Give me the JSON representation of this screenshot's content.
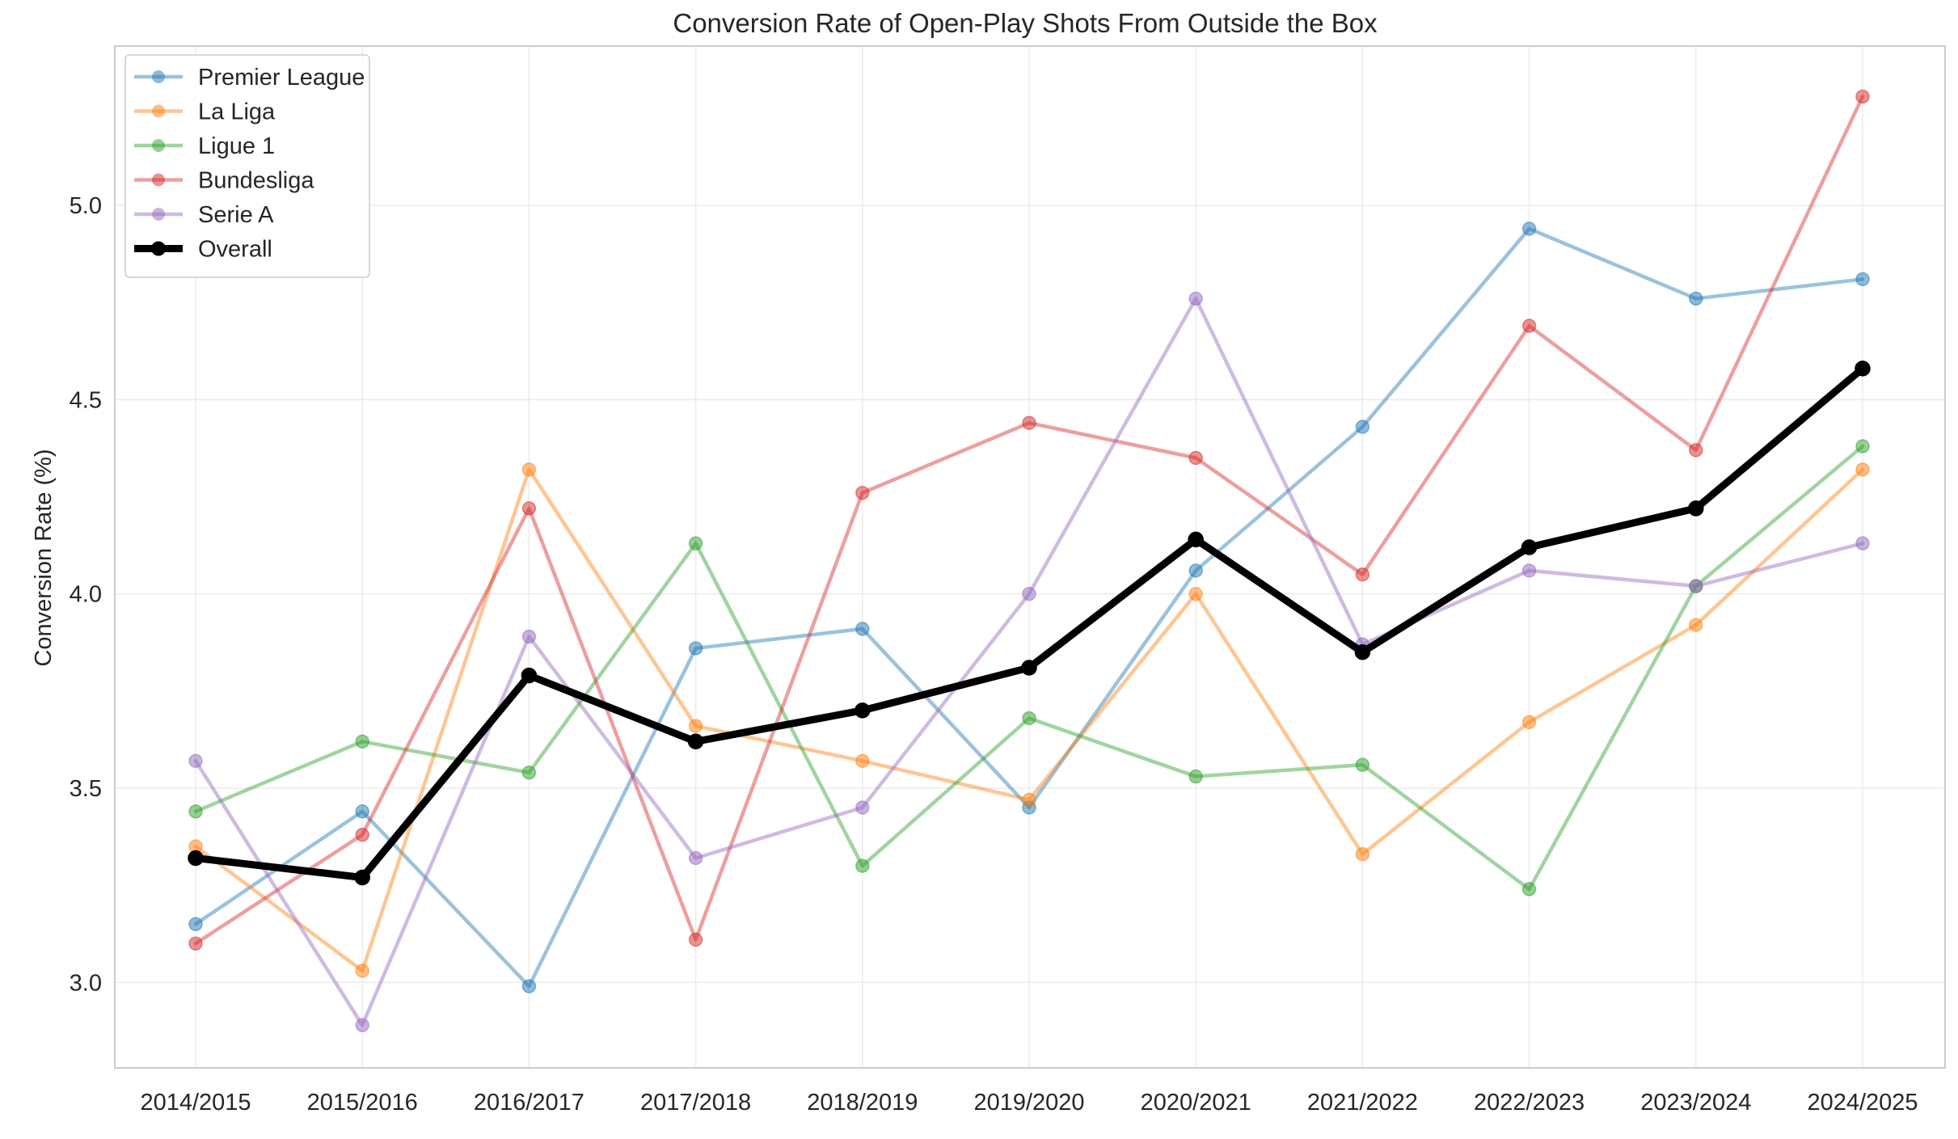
{
  "chart_data": {
    "type": "line",
    "title": "Conversion Rate of Open-Play Shots From Outside the Box",
    "xlabel": "",
    "ylabel": "Conversion Rate (%)",
    "categories": [
      "2014/2015",
      "2015/2016",
      "2016/2017",
      "2017/2018",
      "2018/2019",
      "2019/2020",
      "2020/2021",
      "2021/2022",
      "2022/2023",
      "2023/2024",
      "2024/2025"
    ],
    "ylim": [
      2.78,
      5.41
    ],
    "yticks": [
      "3.0",
      "3.5",
      "4.0",
      "4.5",
      "5.0"
    ],
    "yticks_values": [
      3.0,
      3.5,
      4.0,
      4.5,
      5.0
    ],
    "grid": true,
    "legend_position": "top-left",
    "series": [
      {
        "name": "Premier League",
        "color": "#1f77b4",
        "values": [
          3.15,
          3.44,
          2.99,
          3.86,
          3.91,
          3.45,
          4.06,
          4.43,
          4.94,
          4.76,
          4.81
        ]
      },
      {
        "name": "La Liga",
        "color": "#ff7f0e",
        "values": [
          3.35,
          3.03,
          4.32,
          3.66,
          3.57,
          3.47,
          4.0,
          3.33,
          3.67,
          3.92,
          4.32
        ]
      },
      {
        "name": "Ligue 1",
        "color": "#2ca02c",
        "values": [
          3.44,
          3.62,
          3.54,
          4.13,
          3.3,
          3.68,
          3.53,
          3.56,
          3.24,
          4.02,
          4.38
        ]
      },
      {
        "name": "Bundesliga",
        "color": "#d62728",
        "values": [
          3.1,
          3.38,
          4.22,
          3.11,
          4.26,
          4.44,
          4.35,
          4.05,
          4.69,
          4.37,
          5.28
        ]
      },
      {
        "name": "Serie A",
        "color": "#9467bd",
        "values": [
          3.57,
          2.89,
          3.89,
          3.32,
          3.45,
          4.0,
          4.76,
          3.87,
          4.06,
          4.02,
          4.13
        ]
      },
      {
        "name": "Overall",
        "color": "#000000",
        "values": [
          3.32,
          3.27,
          3.79,
          3.62,
          3.7,
          3.81,
          4.14,
          3.85,
          4.12,
          4.22,
          4.58
        ]
      }
    ]
  }
}
